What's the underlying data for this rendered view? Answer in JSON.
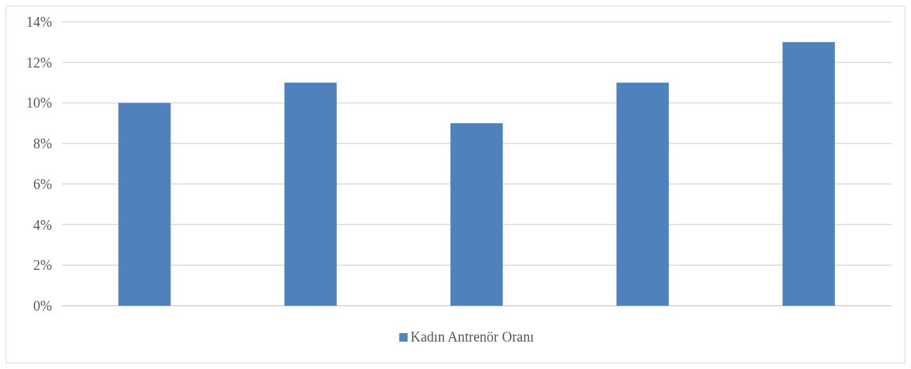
{
  "chart_data": {
    "type": "bar",
    "categories": [
      null,
      null,
      null,
      null,
      null
    ],
    "series": [
      {
        "name": "Kadın Antrenör Oranı",
        "color": "#4f81bd",
        "values": [
          10,
          11,
          9,
          11,
          13
        ]
      }
    ],
    "ylim": [
      0,
      14
    ],
    "yticks": [
      {
        "value": 0,
        "label": "0%"
      },
      {
        "value": 2,
        "label": "2%"
      },
      {
        "value": 4,
        "label": "4%"
      },
      {
        "value": 6,
        "label": "6%"
      },
      {
        "value": 8,
        "label": "8%"
      },
      {
        "value": 10,
        "label": "10%"
      },
      {
        "value": 12,
        "label": "12%"
      },
      {
        "value": 14,
        "label": "14%"
      }
    ],
    "grid": "y",
    "legend": "bottom"
  }
}
